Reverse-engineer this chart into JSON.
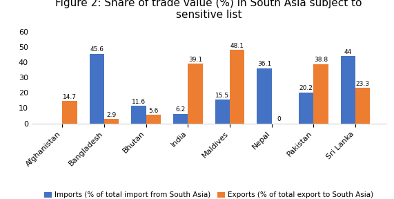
{
  "title": "Figure 2: Share of trade value (%) in South Asia subject to\nsensitive list",
  "categories": [
    "Afghanistan",
    "Bangladesh",
    "Bhutan",
    "India",
    "Maldives",
    "Nepal",
    "Pakistan",
    "Sri Lanka"
  ],
  "imports": [
    0,
    45.6,
    11.6,
    6.2,
    15.5,
    36.1,
    20.2,
    44
  ],
  "exports": [
    14.7,
    2.9,
    5.6,
    39.1,
    48.1,
    0,
    38.8,
    23.3
  ],
  "import_labels": [
    "",
    "45.6",
    "11.6",
    "6.2",
    "15.5",
    "36.1",
    "20.2",
    "44"
  ],
  "export_labels": [
    "14.7",
    "2.9",
    "5.6",
    "39.1",
    "48.1",
    "0",
    "38.8",
    "23.3"
  ],
  "import_color": "#4472C4",
  "export_color": "#ED7D31",
  "legend_imports": "Imports (% of total import from South Asia)",
  "legend_exports": "Exports (% of total export to South Asia)",
  "ylim": [
    0,
    65
  ],
  "yticks": [
    0,
    10,
    20,
    30,
    40,
    50,
    60
  ],
  "bar_width": 0.35,
  "background_color": "#ffffff",
  "title_fontsize": 11,
  "label_fontsize": 6.5,
  "tick_fontsize": 8,
  "legend_fontsize": 7.5
}
